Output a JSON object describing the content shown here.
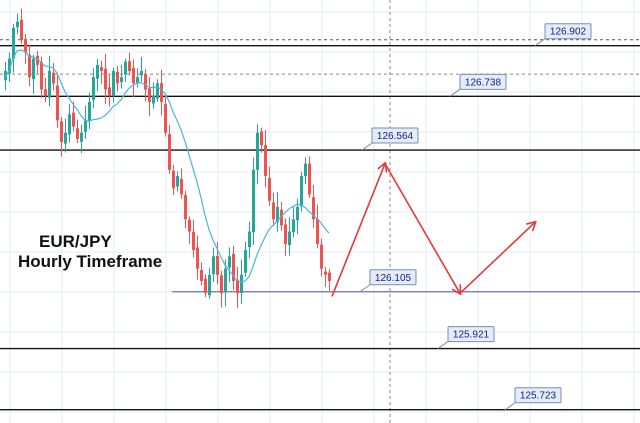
{
  "chart": {
    "title_line1": "EUR/JPY",
    "title_line2": "Hourly Timeframe"
  },
  "chart_data": {
    "type": "candlestick",
    "pair": "EUR/JPY",
    "timeframe": "Hourly",
    "ylim": [
      125.68,
      127.05
    ],
    "grid": true,
    "levels": [
      {
        "price": 126.902,
        "label": "126.902",
        "style": "dashed-and-solid"
      },
      {
        "price": 126.738,
        "label": "126.738",
        "style": "solid"
      },
      {
        "price": 126.564,
        "label": "126.564",
        "style": "solid"
      },
      {
        "price": 126.105,
        "label": "126.105",
        "style": "support-blue"
      },
      {
        "price": 125.921,
        "label": "125.921",
        "style": "solid"
      },
      {
        "price": 125.723,
        "label": "125.723",
        "style": "solid"
      }
    ],
    "projection": [
      {
        "bar": 80,
        "price": 126.09
      },
      {
        "bar": 92,
        "price": 126.52
      },
      {
        "bar": 110,
        "price": 126.1
      },
      {
        "bar": 130,
        "price": 126.33
      }
    ],
    "closes": [
      126.82,
      126.86,
      126.96,
      126.98,
      126.92,
      126.88,
      126.8,
      126.86,
      126.84,
      126.76,
      126.74,
      126.82,
      126.78,
      126.66,
      126.59,
      126.62,
      126.68,
      126.64,
      126.6,
      126.62,
      126.66,
      126.72,
      126.8,
      126.84,
      126.82,
      126.76,
      126.74,
      126.82,
      126.78,
      126.8,
      126.85,
      126.82,
      126.78,
      126.8,
      126.82,
      126.76,
      126.72,
      126.74,
      126.78,
      126.72,
      126.62,
      126.5,
      126.44,
      126.48,
      126.42,
      126.34,
      126.3,
      126.24,
      126.18,
      126.14,
      126.1,
      126.16,
      126.22,
      126.16,
      126.1,
      126.18,
      126.22,
      126.14,
      126.1,
      126.16,
      126.24,
      126.3,
      126.5,
      126.62,
      126.58,
      126.48,
      126.4,
      126.34,
      126.38,
      126.32,
      126.26,
      126.3,
      126.34,
      126.38,
      126.48,
      126.52,
      126.42,
      126.34,
      126.26,
      126.18,
      126.16,
      126.14
    ],
    "moving_average": {
      "color": "#4fb3e0",
      "start_bar": 0
    }
  },
  "colors": {
    "bull": "#26a69a",
    "bear": "#ef5350",
    "level_line": "#111111",
    "support_line": "#6a6fc2",
    "arrow": "#e53935",
    "grid": "#e6eef6",
    "label_bg": "#e3ecfa",
    "label_border": "#7b8db0"
  }
}
